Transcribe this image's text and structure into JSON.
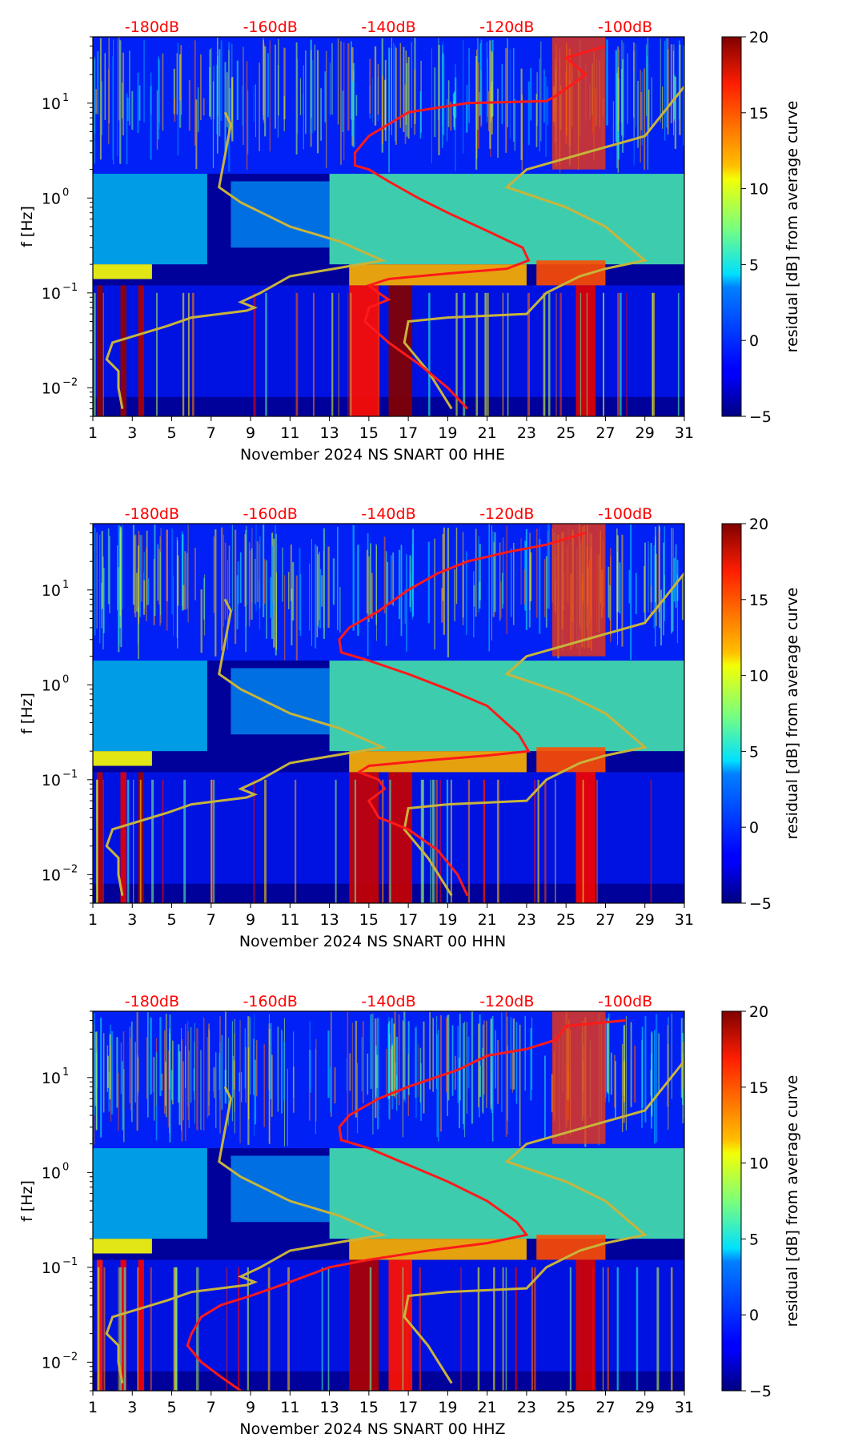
{
  "colors": {
    "db_label": "#ff0000",
    "median_curve": "#ff1a1a",
    "model_curves": "#c8b43c",
    "frame": "#000000"
  },
  "chart_data": [
    {
      "type": "heatmap",
      "title": "",
      "xlabel": "November 2024 NS SNART 00 HHE",
      "ylabel": "f [Hz]",
      "x_ticks": [
        "1",
        "3",
        "5",
        "7",
        "9",
        "11",
        "13",
        "15",
        "17",
        "19",
        "21",
        "23",
        "25",
        "27",
        "29",
        "31"
      ],
      "x_range": [
        1,
        31
      ],
      "y_range_hz": [
        0.005,
        50
      ],
      "y_tick_labels": [
        {
          "value": 0.01,
          "base": "10",
          "exp": "−2"
        },
        {
          "value": 0.1,
          "base": "10",
          "exp": "−1"
        },
        {
          "value": 1,
          "base": "10",
          "exp": "0"
        },
        {
          "value": 10,
          "base": "10",
          "exp": "1"
        }
      ],
      "db_scale": [
        {
          "label": "-180dB",
          "day": 4.0
        },
        {
          "label": "-160dB",
          "day": 10.0
        },
        {
          "label": "-140dB",
          "day": 16.0
        },
        {
          "label": "-120dB",
          "day": 22.0
        },
        {
          "label": "-100dB",
          "day": 28.0
        }
      ],
      "median_curve": [
        [
          27,
          40
        ],
        [
          25,
          30
        ],
        [
          26,
          20
        ],
        [
          24.5,
          12
        ],
        [
          24,
          10.5
        ],
        [
          20,
          10
        ],
        [
          17,
          8
        ],
        [
          16,
          6
        ],
        [
          15,
          4.5
        ],
        [
          14.3,
          3
        ],
        [
          14.3,
          2.2
        ],
        [
          15,
          2
        ],
        [
          16,
          1.5
        ],
        [
          17.5,
          1.0
        ],
        [
          19,
          0.7
        ],
        [
          21,
          0.45
        ],
        [
          22.8,
          0.3
        ],
        [
          23.1,
          0.22
        ],
        [
          22,
          0.18
        ],
        [
          19,
          0.16
        ],
        [
          16,
          0.14
        ],
        [
          15,
          0.12
        ],
        [
          15.5,
          0.1
        ],
        [
          16,
          0.085
        ],
        [
          15,
          0.07
        ],
        [
          14.8,
          0.05
        ],
        [
          16,
          0.03
        ],
        [
          17.5,
          0.018
        ],
        [
          19,
          0.01
        ],
        [
          20,
          0.006
        ]
      ],
      "model_curves": [
        [
          [
            7.7,
            8
          ],
          [
            8,
            6
          ],
          [
            7.4,
            1.3
          ],
          [
            8.5,
            0.9
          ],
          [
            11,
            0.5
          ],
          [
            13.5,
            0.35
          ],
          [
            15.7,
            0.22
          ],
          [
            11,
            0.15
          ],
          [
            9.5,
            0.1
          ],
          [
            8.5,
            0.08
          ],
          [
            9.2,
            0.07
          ],
          [
            8.8,
            0.065
          ],
          [
            6,
            0.055
          ],
          [
            4.8,
            0.045
          ],
          [
            2,
            0.03
          ],
          [
            1.7,
            0.02
          ],
          [
            2.3,
            0.015
          ],
          [
            2.3,
            0.01
          ],
          [
            2.5,
            0.006
          ]
        ],
        [
          [
            31,
            15
          ],
          [
            29,
            4.5
          ],
          [
            23,
            2
          ],
          [
            22,
            1.3
          ],
          [
            25,
            0.8
          ],
          [
            27,
            0.5
          ],
          [
            29,
            0.22
          ],
          [
            27,
            0.18
          ],
          [
            25.7,
            0.15
          ],
          [
            24,
            0.1
          ],
          [
            23,
            0.06
          ],
          [
            19,
            0.055
          ],
          [
            17,
            0.05
          ],
          [
            16.8,
            0.03
          ],
          [
            18,
            0.015
          ],
          [
            19.2,
            0.006
          ]
        ]
      ]
    },
    {
      "type": "heatmap",
      "title": "",
      "xlabel": "November 2024 NS SNART 00 HHN",
      "ylabel": "f [Hz]",
      "x_ticks": [
        "1",
        "3",
        "5",
        "7",
        "9",
        "11",
        "13",
        "15",
        "17",
        "19",
        "21",
        "23",
        "25",
        "27",
        "29",
        "31"
      ],
      "x_range": [
        1,
        31
      ],
      "y_range_hz": [
        0.005,
        50
      ],
      "y_tick_labels": [
        {
          "value": 0.01,
          "base": "10",
          "exp": "−2"
        },
        {
          "value": 0.1,
          "base": "10",
          "exp": "−1"
        },
        {
          "value": 1,
          "base": "10",
          "exp": "0"
        },
        {
          "value": 10,
          "base": "10",
          "exp": "1"
        }
      ],
      "db_scale": [
        {
          "label": "-180dB",
          "day": 4.0
        },
        {
          "label": "-160dB",
          "day": 10.0
        },
        {
          "label": "-140dB",
          "day": 16.0
        },
        {
          "label": "-120dB",
          "day": 22.0
        },
        {
          "label": "-100dB",
          "day": 28.0
        }
      ],
      "median_curve": [
        [
          26,
          40
        ],
        [
          24,
          30
        ],
        [
          22,
          25
        ],
        [
          20,
          20
        ],
        [
          18.5,
          15
        ],
        [
          17,
          10
        ],
        [
          15.5,
          6
        ],
        [
          14,
          4
        ],
        [
          13.5,
          3
        ],
        [
          13.6,
          2.2
        ],
        [
          15,
          1.8
        ],
        [
          17,
          1.3
        ],
        [
          19,
          0.9
        ],
        [
          21,
          0.6
        ],
        [
          22.6,
          0.3
        ],
        [
          23.1,
          0.2
        ],
        [
          21,
          0.18
        ],
        [
          18,
          0.16
        ],
        [
          15,
          0.14
        ],
        [
          14.5,
          0.12
        ],
        [
          15.5,
          0.1
        ],
        [
          15.8,
          0.08
        ],
        [
          15,
          0.06
        ],
        [
          15.5,
          0.04
        ],
        [
          17,
          0.03
        ],
        [
          18.5,
          0.018
        ],
        [
          19.5,
          0.01
        ],
        [
          20,
          0.006
        ]
      ],
      "model_curves": [
        [
          [
            7.7,
            8
          ],
          [
            8,
            6
          ],
          [
            7.4,
            1.3
          ],
          [
            8.5,
            0.9
          ],
          [
            11,
            0.5
          ],
          [
            13.5,
            0.35
          ],
          [
            15.7,
            0.22
          ],
          [
            11,
            0.15
          ],
          [
            9.5,
            0.1
          ],
          [
            8.5,
            0.08
          ],
          [
            9.2,
            0.07
          ],
          [
            8.8,
            0.065
          ],
          [
            6,
            0.055
          ],
          [
            4.8,
            0.045
          ],
          [
            2,
            0.03
          ],
          [
            1.7,
            0.02
          ],
          [
            2.3,
            0.015
          ],
          [
            2.3,
            0.01
          ],
          [
            2.5,
            0.006
          ]
        ],
        [
          [
            31,
            15
          ],
          [
            29,
            4.5
          ],
          [
            23,
            2
          ],
          [
            22,
            1.3
          ],
          [
            25,
            0.8
          ],
          [
            27,
            0.5
          ],
          [
            29,
            0.22
          ],
          [
            27,
            0.18
          ],
          [
            25.7,
            0.15
          ],
          [
            24,
            0.1
          ],
          [
            23,
            0.06
          ],
          [
            19,
            0.055
          ],
          [
            17,
            0.05
          ],
          [
            16.8,
            0.03
          ],
          [
            18,
            0.015
          ],
          [
            19.2,
            0.006
          ]
        ]
      ]
    },
    {
      "type": "heatmap",
      "title": "",
      "xlabel": "November 2024 NS SNART 00 HHZ",
      "ylabel": "f [Hz]",
      "x_ticks": [
        "1",
        "3",
        "5",
        "7",
        "9",
        "11",
        "13",
        "15",
        "17",
        "19",
        "21",
        "23",
        "25",
        "27",
        "29",
        "31"
      ],
      "x_range": [
        1,
        31
      ],
      "y_range_hz": [
        0.005,
        50
      ],
      "y_tick_labels": [
        {
          "value": 0.01,
          "base": "10",
          "exp": "−2"
        },
        {
          "value": 0.1,
          "base": "10",
          "exp": "−1"
        },
        {
          "value": 1,
          "base": "10",
          "exp": "0"
        },
        {
          "value": 10,
          "base": "10",
          "exp": "1"
        }
      ],
      "db_scale": [
        {
          "label": "-180dB",
          "day": 4.0
        },
        {
          "label": "-160dB",
          "day": 10.0
        },
        {
          "label": "-140dB",
          "day": 16.0
        },
        {
          "label": "-120dB",
          "day": 22.0
        },
        {
          "label": "-100dB",
          "day": 28.0
        }
      ],
      "median_curve": [
        [
          28,
          40
        ],
        [
          25,
          35
        ],
        [
          24.5,
          25
        ],
        [
          23,
          20
        ],
        [
          21,
          17
        ],
        [
          19.5,
          12
        ],
        [
          17,
          8
        ],
        [
          15.5,
          6
        ],
        [
          14,
          4
        ],
        [
          13.5,
          3
        ],
        [
          13.6,
          2.2
        ],
        [
          15,
          1.8
        ],
        [
          17,
          1.2
        ],
        [
          19,
          0.8
        ],
        [
          21,
          0.5
        ],
        [
          22.5,
          0.3
        ],
        [
          23,
          0.22
        ],
        [
          21,
          0.18
        ],
        [
          18,
          0.15
        ],
        [
          15,
          0.12
        ],
        [
          13,
          0.1
        ],
        [
          11,
          0.07
        ],
        [
          9,
          0.05
        ],
        [
          7.5,
          0.04
        ],
        [
          6.5,
          0.03
        ],
        [
          6,
          0.02
        ],
        [
          5.8,
          0.015
        ],
        [
          6.5,
          0.01
        ],
        [
          7.5,
          0.007
        ],
        [
          8.5,
          0.005
        ]
      ],
      "model_curves": [
        [
          [
            7.7,
            8
          ],
          [
            8,
            6
          ],
          [
            7.4,
            1.3
          ],
          [
            8.5,
            0.9
          ],
          [
            11,
            0.5
          ],
          [
            13.5,
            0.35
          ],
          [
            15.7,
            0.22
          ],
          [
            11,
            0.15
          ],
          [
            9.5,
            0.1
          ],
          [
            8.5,
            0.08
          ],
          [
            9.2,
            0.07
          ],
          [
            8.8,
            0.065
          ],
          [
            6,
            0.055
          ],
          [
            4.8,
            0.045
          ],
          [
            2,
            0.03
          ],
          [
            1.7,
            0.02
          ],
          [
            2.3,
            0.015
          ],
          [
            2.3,
            0.01
          ],
          [
            2.5,
            0.006
          ]
        ],
        [
          [
            31,
            15
          ],
          [
            29,
            4.5
          ],
          [
            23,
            2
          ],
          [
            22,
            1.3
          ],
          [
            25,
            0.8
          ],
          [
            27,
            0.5
          ],
          [
            29,
            0.22
          ],
          [
            27,
            0.18
          ],
          [
            25.7,
            0.15
          ],
          [
            24,
            0.1
          ],
          [
            23,
            0.06
          ],
          [
            19,
            0.055
          ],
          [
            17,
            0.05
          ],
          [
            16.8,
            0.03
          ],
          [
            18,
            0.015
          ],
          [
            19.2,
            0.006
          ]
        ]
      ]
    }
  ],
  "colorbar": {
    "label": "residual [dB] from average curve",
    "min": -5,
    "max": 20,
    "ticks": [
      "20",
      "15",
      "10",
      "5",
      "0",
      "−5"
    ],
    "tick_values": [
      20,
      15,
      10,
      5,
      0,
      -5
    ],
    "colormap": "jet"
  }
}
